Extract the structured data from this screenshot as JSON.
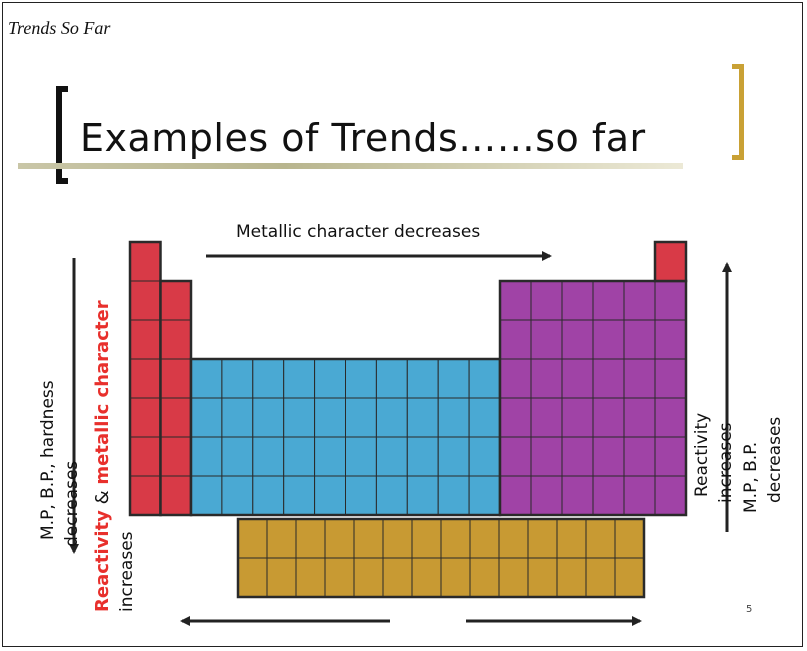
{
  "slide": {
    "caption": "Trends So Far",
    "title": "Examples of Trends……so far",
    "page_number": "5"
  },
  "labels": {
    "top_arrow": "Metallic character decreases",
    "left_line1": "M.P, B.P., hardness",
    "left_line2": "decreases",
    "left_reactivity": "Reactivity",
    "left_amp": " & ",
    "left_metallic": "metallic character",
    "left_line4": "increases",
    "right_line1": "Reactivity",
    "right_line2": "increases",
    "right_line3": "M.P, B.P.",
    "right_line4": "decreases"
  },
  "colors": {
    "s_block": "#d83a47",
    "d_block": "#4aa9d3",
    "p_block": "#a043a6",
    "f_block": "#c89a33",
    "bracket_right": "#c9a135"
  }
}
